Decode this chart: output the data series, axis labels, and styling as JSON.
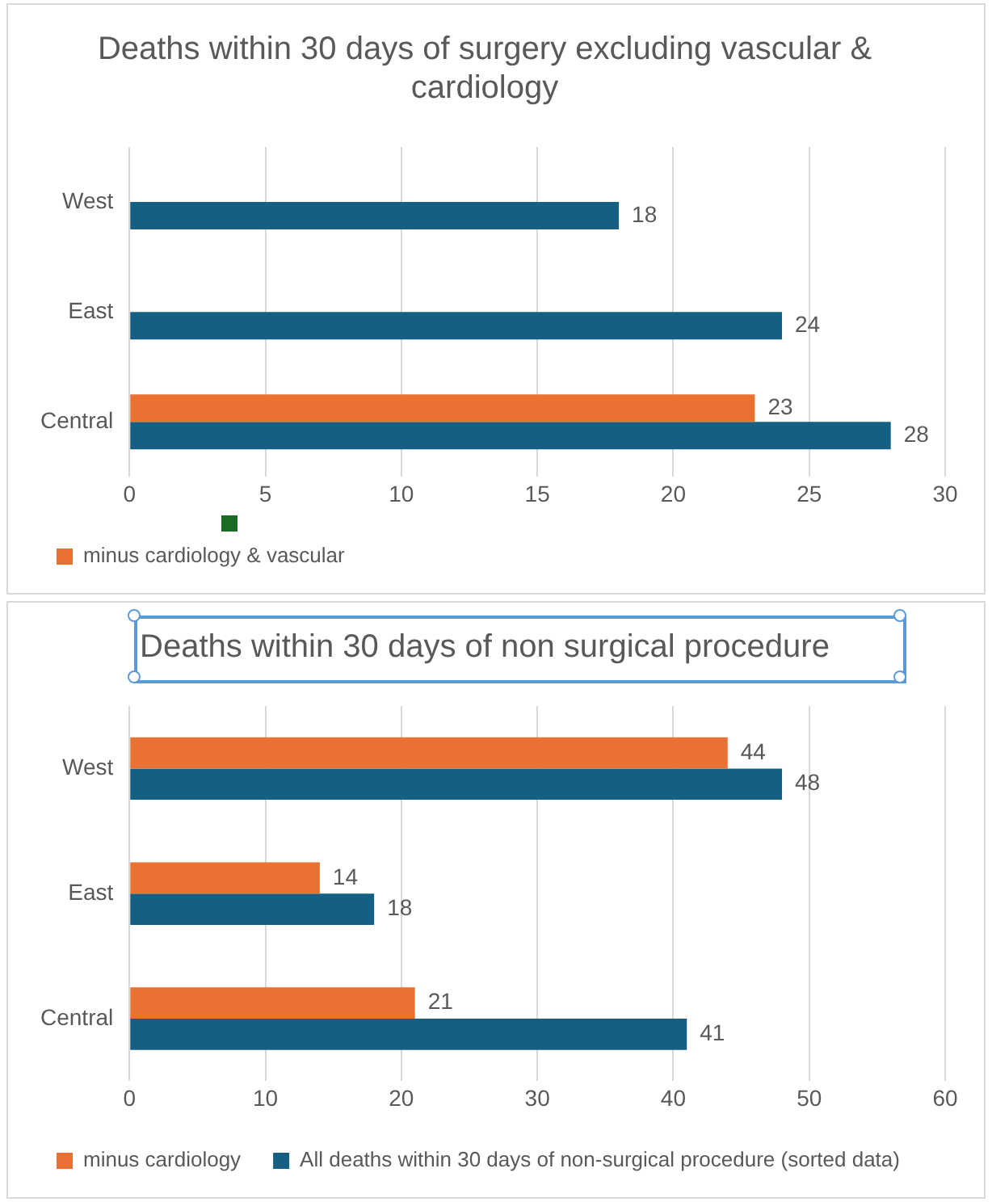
{
  "chart_data": [
    {
      "type": "bar",
      "orientation": "horizontal",
      "title": "Deaths within 30 days of surgery excluding vascular & cardiology",
      "categories": [
        "West",
        "East",
        "Central"
      ],
      "series": [
        {
          "name": "minus cardiology & vascular",
          "color": "#e97132",
          "values": [
            null,
            null,
            23
          ]
        },
        {
          "color": "#156082",
          "values": [
            18,
            24,
            28
          ]
        }
      ],
      "xlim": [
        0,
        30
      ],
      "xticks": [
        0,
        5,
        10,
        15,
        20,
        25,
        30
      ],
      "grid": "x",
      "legend": "bottom",
      "data_labels": true
    },
    {
      "type": "bar",
      "orientation": "horizontal",
      "title": "Deaths within 30 days of non surgical procedure",
      "categories": [
        "West",
        "East",
        "Central"
      ],
      "series": [
        {
          "name": "minus cardiology",
          "color": "#e97132",
          "values": [
            44,
            14,
            21
          ]
        },
        {
          "name": "All deaths within 30 days of non-surgical procedure (sorted data)",
          "color": "#156082",
          "values": [
            48,
            18,
            41
          ]
        }
      ],
      "xlim": [
        0,
        60
      ],
      "xticks": [
        0,
        10,
        20,
        30,
        40,
        50,
        60
      ],
      "grid": "x",
      "legend": "bottom",
      "data_labels": true
    }
  ]
}
